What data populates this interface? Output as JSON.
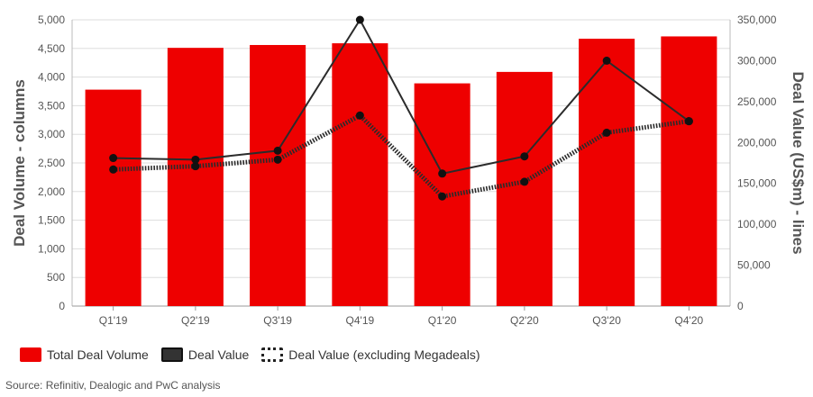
{
  "chart_data": {
    "type": "bar",
    "categories": [
      "Q1'19",
      "Q2'19",
      "Q3'19",
      "Q4'19",
      "Q1'20",
      "Q2'20",
      "Q3'20",
      "Q4'20"
    ],
    "series": [
      {
        "name": "Total Deal Volume",
        "type": "bar",
        "axis": "left",
        "color": "#ee0000",
        "values": [
          3780,
          4510,
          4560,
          4590,
          3890,
          4090,
          4670,
          4710
        ]
      },
      {
        "name": "Deal Value",
        "type": "line",
        "axis": "right",
        "color": "#2b2b2b",
        "values": [
          181000,
          179000,
          190000,
          350000,
          162000,
          183000,
          300000,
          226000
        ]
      },
      {
        "name": "Deal Value (excluding Megadeals)",
        "type": "line-dotted",
        "axis": "right",
        "color": "#2b2b2b",
        "values": [
          167000,
          171000,
          179000,
          233000,
          134000,
          152000,
          212000,
          226000
        ]
      }
    ],
    "ylabel": "Deal Volume - columns",
    "ylabel_right": "Deal Value (US$m) - lines",
    "ylim": [
      0,
      5000
    ],
    "ylim_right": [
      0,
      350000
    ],
    "yticks": [
      "0",
      "500",
      "1,000",
      "1,500",
      "2,000",
      "2,500",
      "3,000",
      "3,500",
      "4,000",
      "4,500",
      "5,000"
    ],
    "yticks_right": [
      "0",
      "50,000",
      "100,000",
      "150,000",
      "200,000",
      "250,000",
      "300,000",
      "350,000"
    ],
    "grid": true,
    "legend_position": "bottom-left"
  },
  "legend": {
    "items": [
      {
        "label": "Total Deal Volume",
        "style": "bar"
      },
      {
        "label": "Deal Value",
        "style": "line"
      },
      {
        "label": "Deal Value (excluding Megadeals)",
        "style": "dotted"
      }
    ]
  },
  "source": "Source: Refinitiv, Dealogic and PwC analysis"
}
